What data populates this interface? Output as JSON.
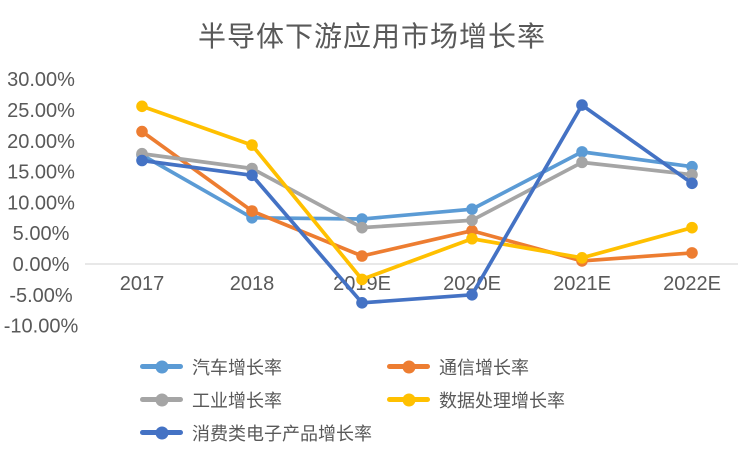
{
  "chart_data": {
    "type": "line",
    "title": "半导体下游应用市场增长率",
    "categories": [
      "2017",
      "2018",
      "2019E",
      "2020E",
      "2021E",
      "2022E"
    ],
    "series": [
      {
        "id": "auto",
        "name": "汽车增长率",
        "color": "#5B9BD5",
        "values": [
          17.7,
          7.5,
          7.3,
          8.9,
          18.2,
          15.8
        ]
      },
      {
        "id": "communication",
        "name": "通信增长率",
        "color": "#ED7D31",
        "values": [
          21.5,
          8.6,
          1.3,
          5.4,
          0.5,
          1.8
        ]
      },
      {
        "id": "industrial",
        "name": "工业增长率",
        "color": "#A5A5A5",
        "values": [
          17.9,
          15.5,
          5.9,
          7.1,
          16.5,
          14.5
        ]
      },
      {
        "id": "data-processing",
        "name": "数据处理增长率",
        "color": "#FFC000",
        "values": [
          25.6,
          19.3,
          -2.5,
          4.1,
          1.0,
          5.9
        ]
      },
      {
        "id": "consumer-electronics",
        "name": "消费类电子产品增长率",
        "color": "#4472C4",
        "values": [
          16.8,
          14.4,
          -6.3,
          -5.0,
          25.8,
          13.1
        ]
      }
    ],
    "y_axis": {
      "min": -10,
      "max": 30,
      "step": 5,
      "tick_labels": [
        "30.00%",
        "25.00%",
        "20.00%",
        "15.00%",
        "10.00%",
        "5.00%",
        "0.00%",
        "-5.00%",
        "-10.00%"
      ]
    },
    "xlabel": "",
    "ylabel": "",
    "ylim": [
      -10,
      30
    ],
    "grid": "zero-line-only",
    "legend_position": "bottom",
    "colors": {
      "text": "#595959",
      "zero_line": "#D9D9D9",
      "background": "#FFFFFF"
    }
  }
}
